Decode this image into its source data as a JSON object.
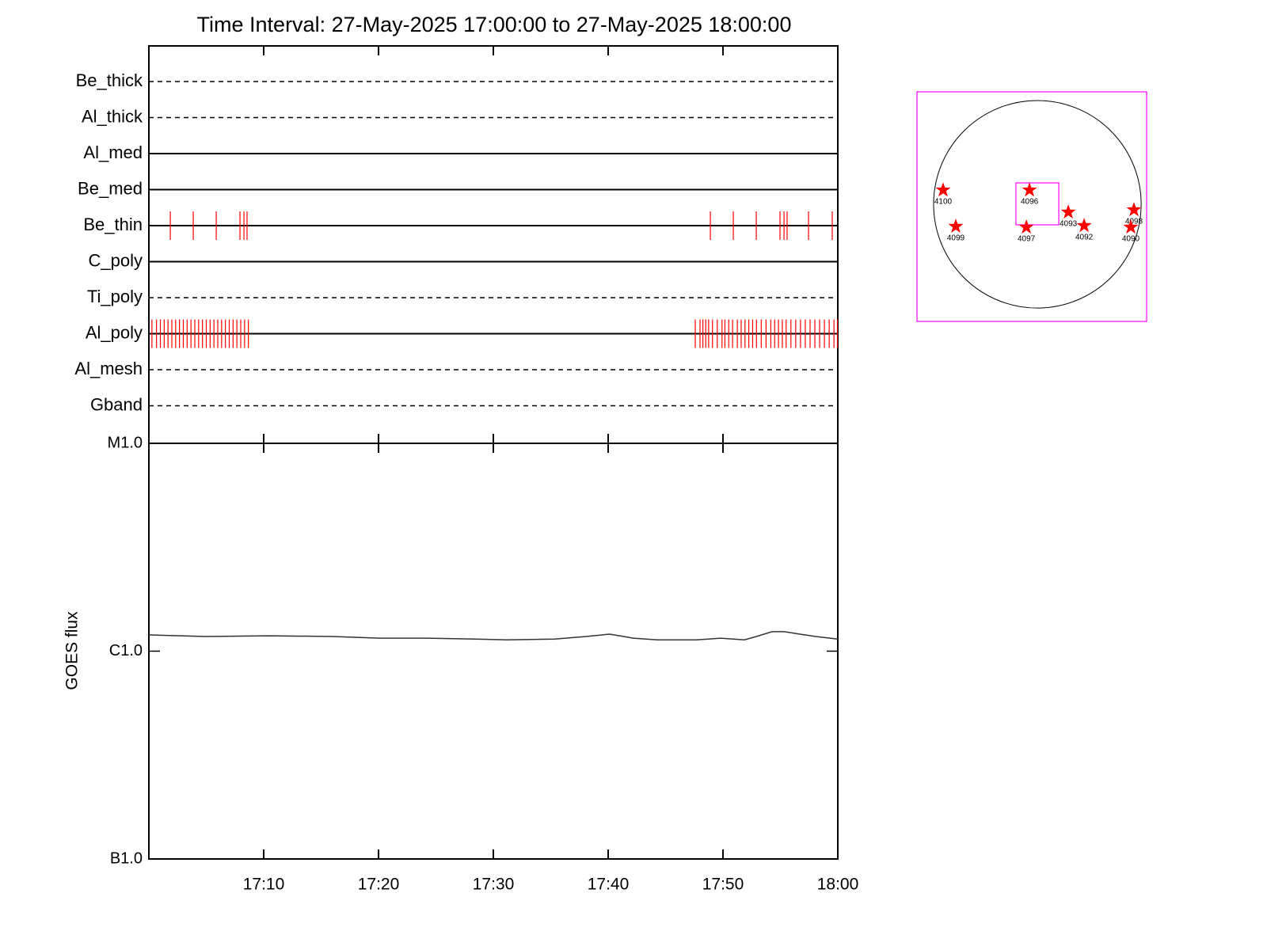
{
  "chart_data": [
    {
      "type": "timeline",
      "title": "Time Interval: 27-May-2025 17:00:00 to 27-May-2025 18:00:00",
      "categories": [
        "Be_thick",
        "Al_thick",
        "Al_med",
        "Be_med",
        "Be_thin",
        "C_poly",
        "Ti_poly",
        "Al_poly",
        "Al_mesh",
        "Gband"
      ],
      "line_styles": [
        "dashed",
        "dashed",
        "solid",
        "solid",
        "solid",
        "solid",
        "dashed",
        "solid",
        "dashed",
        "dashed"
      ],
      "events": [
        [],
        [],
        [],
        [],
        [
          "17:01:52",
          "17:03:52",
          "17:05:52",
          "17:07:56",
          "17:08:17",
          "17:08:33",
          "17:48:54",
          "17:50:54",
          "17:52:54",
          "17:54:58",
          "17:55:19",
          "17:55:35",
          "17:57:27",
          "17:59:31"
        ],
        [],
        [],
        [
          "17:00:16",
          "17:00:40",
          "17:01:00",
          "17:01:20",
          "17:01:40",
          "17:02:00",
          "17:02:20",
          "17:02:40",
          "17:03:00",
          "17:03:20",
          "17:03:40",
          "17:04:00",
          "17:04:20",
          "17:04:40",
          "17:05:00",
          "17:05:20",
          "17:05:40",
          "17:06:00",
          "17:06:20",
          "17:06:40",
          "17:07:00",
          "17:07:20",
          "17:07:40",
          "17:08:00",
          "17:08:20",
          "17:08:40",
          "17:47:35",
          "17:48:00",
          "17:48:15",
          "17:48:30",
          "17:48:45",
          "17:49:05",
          "17:49:30",
          "17:49:55",
          "17:50:10",
          "17:50:30",
          "17:50:50",
          "17:51:15",
          "17:51:35",
          "17:51:55",
          "17:52:15",
          "17:52:35",
          "17:52:55",
          "17:53:20",
          "17:53:45",
          "17:54:10",
          "17:54:30",
          "17:54:50",
          "17:55:10",
          "17:55:30",
          "17:55:55",
          "17:56:20",
          "17:56:45",
          "17:57:10",
          "17:57:35",
          "17:58:00",
          "17:58:25",
          "17:58:50",
          "17:59:15",
          "17:59:40",
          "17:59:58"
        ],
        [],
        []
      ],
      "event_color": "#ff0000",
      "xlim": [
        "17:00",
        "18:00"
      ],
      "xticks": [
        "17:10",
        "17:20",
        "17:30",
        "17:40",
        "17:50",
        "18:00"
      ]
    },
    {
      "type": "line",
      "ylabel": "GOES flux",
      "log_y": true,
      "x": [
        "17:00:00",
        "17:04:58",
        "17:10:29",
        "17:16:00",
        "17:20:08",
        "17:24:17",
        "17:28:25",
        "17:31:10",
        "17:35:19",
        "17:38:04",
        "17:40:08",
        "17:42:12",
        "17:44:17",
        "17:47:43",
        "17:49:48",
        "17:51:52",
        "17:52:54",
        "17:54:17",
        "17:55:19",
        "17:56:41",
        "17:58:04",
        "18:00:00"
      ],
      "values": [
        1.197e-06,
        1.176e-06,
        1.186e-06,
        1.176e-06,
        1.155e-06,
        1.155e-06,
        1.144e-06,
        1.134e-06,
        1.144e-06,
        1.176e-06,
        1.208e-06,
        1.155e-06,
        1.134e-06,
        1.134e-06,
        1.155e-06,
        1.134e-06,
        1.176e-06,
        1.241e-06,
        1.241e-06,
        1.208e-06,
        1.176e-06,
        1.144e-06
      ],
      "color": "#333333",
      "xlim": [
        "17:00",
        "18:00"
      ],
      "xticks": [
        "17:10",
        "17:20",
        "17:30",
        "17:40",
        "17:50",
        "18:00"
      ],
      "ylim": [
        1e-07,
        1e-05
      ],
      "yticks": [
        {
          "value": 1e-07,
          "label": "B1.0"
        },
        {
          "value": 1e-06,
          "label": "C1.0"
        },
        {
          "value": 1e-05,
          "label": "M1.0"
        }
      ]
    },
    {
      "type": "scatter",
      "labels": [
        "4100",
        "4096",
        "4099",
        "4097",
        "4093",
        "4092",
        "4098",
        "4090"
      ],
      "x": [
        -863,
        -72,
        -747,
        -101,
        283,
        428,
        884,
        855
      ],
      "values": [
        130,
        130,
        -203,
        -210,
        -72,
        -196,
        -51,
        -210
      ],
      "radius": 950,
      "fov": {
        "x": [
          -196,
          196
        ],
        "y": [
          -188,
          196
        ]
      },
      "color": "#ff0000",
      "frame_color": "#ff00ff",
      "xlim": [
        -1102,
        1000
      ],
      "ylim": [
        -1073,
        1030
      ]
    }
  ]
}
